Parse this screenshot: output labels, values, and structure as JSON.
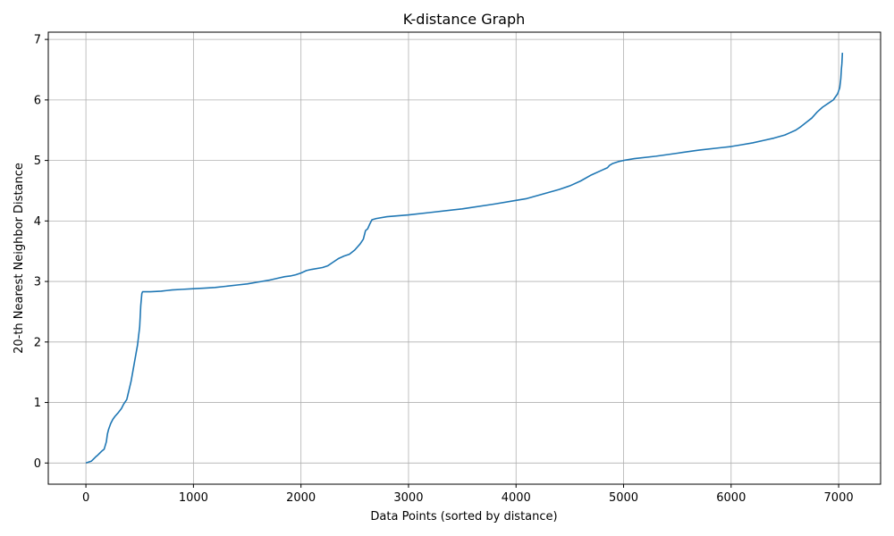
{
  "chart_data": {
    "type": "line",
    "title": "K-distance Graph",
    "xlabel": "Data Points (sorted by distance)",
    "ylabel": "20-th Nearest Neighbor Distance",
    "xlim": [
      -350,
      7390
    ],
    "ylim": [
      -0.35,
      7.12
    ],
    "xticks": [
      0,
      1000,
      2000,
      3000,
      4000,
      5000,
      6000,
      7000
    ],
    "yticks": [
      0,
      1,
      2,
      3,
      4,
      5,
      6,
      7
    ],
    "grid": true,
    "series": [
      {
        "color": "#1f77b4",
        "x": [
          0,
          50,
          90,
          110,
          150,
          170,
          190,
          200,
          210,
          230,
          250,
          270,
          300,
          330,
          350,
          380,
          400,
          420,
          440,
          460,
          480,
          490,
          500,
          510,
          520,
          527,
          530,
          535,
          550,
          600,
          700,
          750,
          800,
          900,
          1000,
          1100,
          1200,
          1300,
          1400,
          1500,
          1600,
          1700,
          1800,
          1850,
          1900,
          1950,
          2000,
          2050,
          2100,
          2200,
          2250,
          2300,
          2350,
          2400,
          2450,
          2500,
          2550,
          2580,
          2600,
          2620,
          2640,
          2660,
          2700,
          2800,
          3000,
          3200,
          3500,
          3800,
          4000,
          4100,
          4200,
          4300,
          4400,
          4500,
          4600,
          4700,
          4800,
          4850,
          4870,
          4900,
          4950,
          5000,
          5100,
          5300,
          5500,
          5700,
          5900,
          6000,
          6100,
          6200,
          6300,
          6400,
          6500,
          6550,
          6600,
          6650,
          6700,
          6750,
          6800,
          6850,
          6900,
          6950,
          6970,
          6990,
          7000,
          7010,
          7020,
          7025,
          7030,
          7035
        ],
        "y": [
          0,
          0.03,
          0.1,
          0.13,
          0.2,
          0.23,
          0.35,
          0.48,
          0.55,
          0.65,
          0.72,
          0.77,
          0.83,
          0.9,
          0.97,
          1.05,
          1.2,
          1.35,
          1.55,
          1.75,
          1.95,
          2.1,
          2.25,
          2.6,
          2.8,
          2.83,
          2.83,
          2.83,
          2.83,
          2.83,
          2.84,
          2.85,
          2.86,
          2.87,
          2.88,
          2.89,
          2.9,
          2.92,
          2.94,
          2.96,
          2.99,
          3.02,
          3.06,
          3.08,
          3.09,
          3.11,
          3.14,
          3.18,
          3.2,
          3.23,
          3.26,
          3.32,
          3.38,
          3.42,
          3.45,
          3.52,
          3.62,
          3.7,
          3.84,
          3.87,
          3.95,
          4.02,
          4.04,
          4.07,
          4.1,
          4.14,
          4.2,
          4.28,
          4.34,
          4.37,
          4.42,
          4.47,
          4.52,
          4.58,
          4.66,
          4.76,
          4.84,
          4.88,
          4.92,
          4.95,
          4.98,
          5.0,
          5.03,
          5.07,
          5.12,
          5.17,
          5.21,
          5.23,
          5.26,
          5.29,
          5.33,
          5.37,
          5.42,
          5.46,
          5.5,
          5.56,
          5.63,
          5.7,
          5.8,
          5.88,
          5.94,
          6.0,
          6.05,
          6.1,
          6.15,
          6.2,
          6.35,
          6.5,
          6.6,
          6.78
        ]
      }
    ]
  }
}
